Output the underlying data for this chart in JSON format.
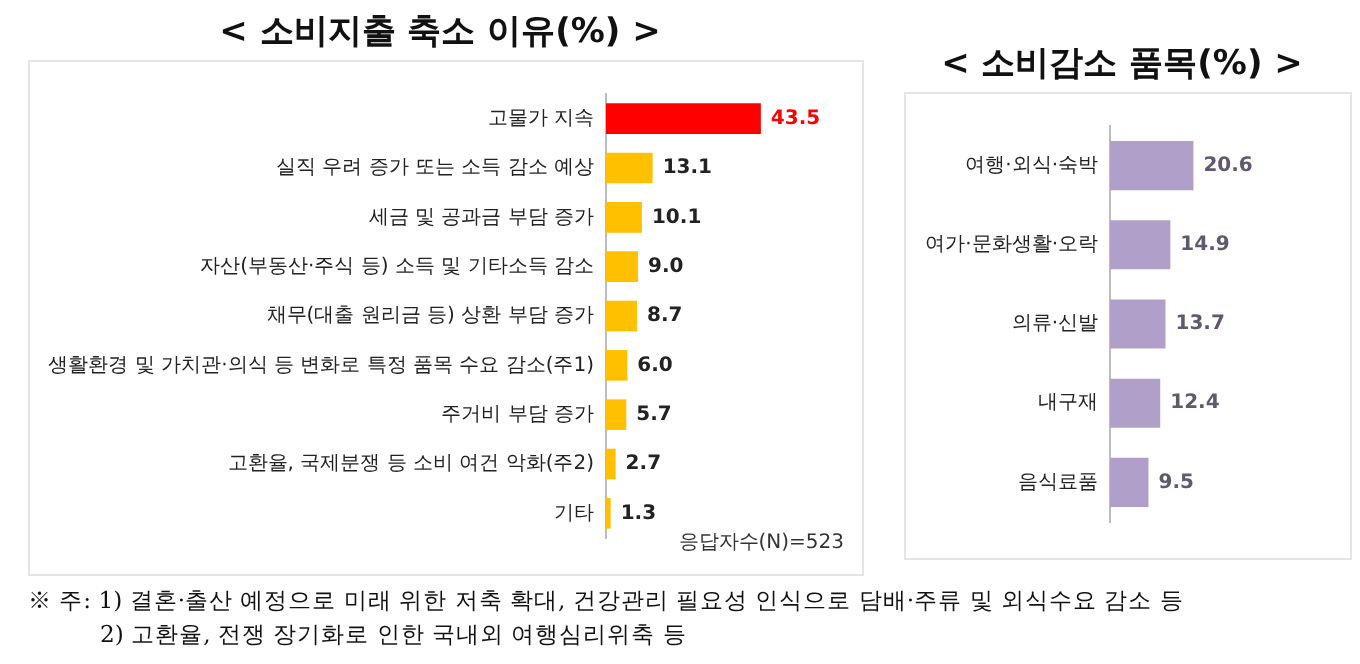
{
  "chart_data": [
    {
      "type": "bar",
      "orientation": "horizontal",
      "title": "< 소비지출 축소 이유(%) >",
      "categories": [
        "고물가 지속",
        "실직 우려 증가 또는 소득 감소 예상",
        "세금 및 공과금 부담 증가",
        "자산(부동산·주식 등) 소득 및 기타소득 감소",
        "채무(대출 원리금 등) 상환 부담 증가",
        "생활환경 및 가치관·의식 등 변화로 특정 품목 수요 감소(주1)",
        "주거비 부담 증가",
        "고환율, 국제분쟁 등 소비 여건 악화(주2)",
        "기타"
      ],
      "values": [
        43.5,
        13.1,
        10.1,
        9.0,
        8.7,
        6.0,
        5.7,
        2.7,
        1.3
      ],
      "colors": [
        "#ff0000",
        "#ffc000",
        "#ffc000",
        "#ffc000",
        "#ffc000",
        "#ffc000",
        "#ffc000",
        "#ffc000",
        "#ffc000"
      ],
      "value_labels": [
        "43.5",
        "13.1",
        "10.1",
        "9.0",
        "8.7",
        "6.0",
        "5.7",
        "2.7",
        "1.3"
      ],
      "grid": false,
      "legend": false,
      "tick_labels": "y",
      "annotations": [
        "응답자수(N)=523",
        "※ 주: 1) 결혼·출산 예정으로 미래 위한 저축 확대, 건강관리 필요성 인식으로 담배·주류 및 외식수요 감소 등",
        "2) 고환율, 전쟁 장기화로 인한 국내외 여행심리위축 등"
      ]
    },
    {
      "type": "bar",
      "orientation": "horizontal",
      "title": "< 소비감소 품목(%) >",
      "categories": [
        "여행·외식·숙박",
        "여가·문화생활·오락",
        "의류·신발",
        "내구재",
        "음식료품"
      ],
      "values": [
        20.6,
        14.9,
        13.7,
        12.4,
        9.5
      ],
      "color": "#b09fc9",
      "data_labels": true,
      "grid": false,
      "legend": false,
      "tick_labels": "y"
    }
  ]
}
